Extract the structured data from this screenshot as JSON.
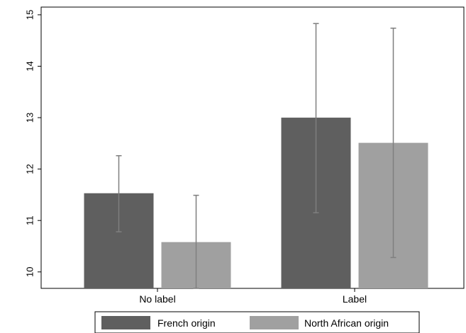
{
  "chart_data": {
    "type": "bar",
    "categories": [
      "No label",
      "Label"
    ],
    "series": [
      {
        "name": "French origin",
        "color": "#5f5f5f",
        "values": [
          11.53,
          13.0
        ],
        "error_low": [
          10.78,
          11.15
        ],
        "error_high": [
          12.26,
          14.83
        ]
      },
      {
        "name": "North African origin",
        "color": "#a0a0a0",
        "values": [
          10.58,
          12.51
        ],
        "error_low": [
          9.68,
          10.28
        ],
        "error_high": [
          11.49,
          14.74
        ]
      }
    ],
    "ylim": [
      9.68,
      15.15
    ],
    "yticks": [
      10,
      11,
      12,
      13,
      14,
      15
    ],
    "ytick_labels": [
      "10",
      "11",
      "12",
      "13",
      "14",
      "15"
    ],
    "xlabel": "",
    "ylabel": "",
    "title": "",
    "grid": false,
    "error_bar_color": "#7f7f7f",
    "legend_position": "bottom"
  }
}
